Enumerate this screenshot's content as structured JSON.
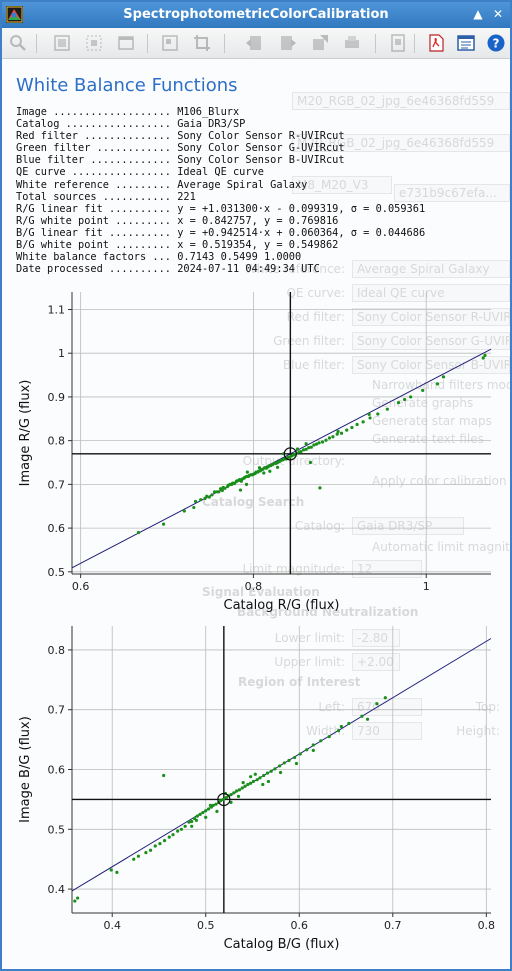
{
  "window": {
    "title": "SpectrophotometricColorCalibration"
  },
  "title_buttons": [
    "▲",
    "✕"
  ],
  "toolbar": {
    "icons": [
      "zoom-icon",
      "fit-zoom-icon",
      "selection-zoom-icon",
      "window-icon",
      "frame-icon",
      "crop-icon",
      "back-icon",
      "forward-icon",
      "export-icon",
      "print-icon",
      "document-icon",
      "pdf-icon",
      "contents-icon",
      "help-icon"
    ]
  },
  "page": {
    "heading": "White Balance Functions",
    "report": [
      {
        "label": "Image ...................",
        "value": "M106_Blurx"
      },
      {
        "label": "Catalog .................",
        "value": "Gaia DR3/SP"
      },
      {
        "label": "Red filter ..............",
        "value": "Sony Color Sensor R-UVIRcut"
      },
      {
        "label": "Green filter ............",
        "value": "Sony Color Sensor G-UVIRcut"
      },
      {
        "label": "Blue filter .............",
        "value": "Sony Color Sensor B-UVIRcut"
      },
      {
        "label": "QE curve ................",
        "value": "Ideal QE curve"
      },
      {
        "label": "White reference .........",
        "value": "Average Spiral Galaxy"
      },
      {
        "label": "Total sources ...........",
        "value": "221"
      },
      {
        "label": "R/G linear fit ..........",
        "value": "y = +1.031300·x - 0.099319, σ = 0.059361"
      },
      {
        "label": "R/G white point .........",
        "value": "x = 0.842757, y = 0.769816"
      },
      {
        "label": "B/G linear fit ..........",
        "value": "y = +0.942514·x + 0.060364, σ = 0.044686"
      },
      {
        "label": "B/G white point .........",
        "value": "x = 0.519354, y = 0.549862"
      },
      {
        "label": "White balance factors ...",
        "value": "0.7143 0.5499 1.0000"
      },
      {
        "label": "Date processed ..........",
        "value": "2024-07-11 04:49:34 UTC"
      }
    ]
  },
  "background_dialog": {
    "tabs": [
      "M20_RGB_02_jpg_6e46368fd559",
      "M20_RGB_02_jpg_6e46368fd559",
      "M8_M20_V3",
      "e731b9c67efa..."
    ],
    "rows": [
      {
        "label": "White reference:",
        "value": "Average Spiral Galaxy"
      },
      {
        "label": "QE curve:",
        "value": "Ideal QE curve"
      },
      {
        "label": "Red filter:",
        "value": "Sony Color Sensor R-UVIRc"
      },
      {
        "label": "Green filter:",
        "value": "Sony Color Sensor G-UVIR"
      },
      {
        "label": "Blue filter:",
        "value": "Sony Color Sensor B-UVIR"
      }
    ],
    "checks": [
      "Narrowband filters mode",
      "Generate graphs",
      "Generate star maps",
      "Generate text files"
    ],
    "output_dir_label": "Output directory:",
    "apply_label": "Apply color calibration",
    "catalog_search": "Catalog Search",
    "catalog_label": "Catalog:",
    "catalog_value": "Gaia DR3/SP",
    "auto_limit": "Automatic limit magnitude",
    "limit_mag": "Limit magnitude:",
    "limit_mag_value": "12",
    "signal_eval": "Signal Evaluation",
    "bg_neutral": "Background Neutralization",
    "lower_limit": "Lower limit:",
    "lower_value": "-2.80",
    "upper_limit": "Upper limit:",
    "upper_value": "+2.00",
    "roi": "Region of Interest",
    "left": "Left:",
    "left_value": "670",
    "top": "Top:",
    "width": "Width:",
    "width_value": "730",
    "height": "Height:"
  },
  "chart_data": [
    {
      "type": "scatter",
      "xlabel": "Catalog R/G (flux)",
      "ylabel": "Image R/G (flux)",
      "xlim": [
        0.59,
        1.075
      ],
      "ylim": [
        0.495,
        1.14
      ],
      "xticks": [
        0.6,
        0.8,
        1
      ],
      "yticks": [
        0.5,
        0.6,
        0.7,
        0.8,
        0.9,
        1,
        1.1
      ],
      "xtick_labels": [
        "0.6",
        "0.8",
        "1"
      ],
      "ytick_labels": [
        "0.5",
        "0.6",
        "0.7",
        "0.8",
        "0.9",
        "1",
        "1.1"
      ],
      "fit": {
        "slope": 1.0313,
        "intercept": -0.099319
      },
      "white_point": {
        "x": 0.842757,
        "y": 0.769816
      },
      "colors": {
        "points": "#1a8f1a",
        "fit": "#1f1f7a",
        "crosshair": "#111111",
        "grid": "#bbbbbb"
      },
      "points": [
        [
          0.667,
          0.59
        ],
        [
          0.696,
          0.609
        ],
        [
          0.72,
          0.639
        ],
        [
          0.731,
          0.647
        ],
        [
          0.733,
          0.661
        ],
        [
          0.739,
          0.665
        ],
        [
          0.744,
          0.668
        ],
        [
          0.746,
          0.673
        ],
        [
          0.749,
          0.671
        ],
        [
          0.752,
          0.676
        ],
        [
          0.755,
          0.683
        ],
        [
          0.758,
          0.683
        ],
        [
          0.76,
          0.683
        ],
        [
          0.762,
          0.69
        ],
        [
          0.764,
          0.686
        ],
        [
          0.765,
          0.693
        ],
        [
          0.767,
          0.691
        ],
        [
          0.77,
          0.695
        ],
        [
          0.771,
          0.698
        ],
        [
          0.773,
          0.7
        ],
        [
          0.775,
          0.7
        ],
        [
          0.776,
          0.703
        ],
        [
          0.778,
          0.702
        ],
        [
          0.78,
          0.706
        ],
        [
          0.781,
          0.708
        ],
        [
          0.783,
          0.709
        ],
        [
          0.784,
          0.711
        ],
        [
          0.786,
          0.707
        ],
        [
          0.787,
          0.712
        ],
        [
          0.789,
          0.714
        ],
        [
          0.79,
          0.716
        ],
        [
          0.792,
          0.718
        ],
        [
          0.794,
          0.718
        ],
        [
          0.795,
          0.72
        ],
        [
          0.797,
          0.722
        ],
        [
          0.799,
          0.722
        ],
        [
          0.8,
          0.723
        ],
        [
          0.802,
          0.725
        ],
        [
          0.803,
          0.728
        ],
        [
          0.805,
          0.728
        ],
        [
          0.806,
          0.73
        ],
        [
          0.808,
          0.731
        ],
        [
          0.81,
          0.734
        ],
        [
          0.811,
          0.735
        ],
        [
          0.813,
          0.738
        ],
        [
          0.815,
          0.737
        ],
        [
          0.817,
          0.74
        ],
        [
          0.818,
          0.742
        ],
        [
          0.82,
          0.743
        ],
        [
          0.822,
          0.745
        ],
        [
          0.824,
          0.748
        ],
        [
          0.826,
          0.748
        ],
        [
          0.828,
          0.75
        ],
        [
          0.83,
          0.752
        ],
        [
          0.832,
          0.755
        ],
        [
          0.834,
          0.756
        ],
        [
          0.836,
          0.758
        ],
        [
          0.838,
          0.758
        ],
        [
          0.84,
          0.762
        ],
        [
          0.842,
          0.762
        ],
        [
          0.844,
          0.765
        ],
        [
          0.846,
          0.767
        ],
        [
          0.848,
          0.768
        ],
        [
          0.85,
          0.771
        ],
        [
          0.853,
          0.774
        ],
        [
          0.855,
          0.775
        ],
        [
          0.858,
          0.779
        ],
        [
          0.861,
          0.78
        ],
        [
          0.864,
          0.784
        ],
        [
          0.867,
          0.785
        ],
        [
          0.87,
          0.79
        ],
        [
          0.873,
          0.792
        ],
        [
          0.876,
          0.795
        ],
        [
          0.88,
          0.797
        ],
        [
          0.884,
          0.801
        ],
        [
          0.888,
          0.806
        ],
        [
          0.892,
          0.809
        ],
        [
          0.897,
          0.815
        ],
        [
          0.902,
          0.817
        ],
        [
          0.908,
          0.824
        ],
        [
          0.914,
          0.83
        ],
        [
          0.92,
          0.837
        ],
        [
          0.927,
          0.843
        ],
        [
          0.935,
          0.852
        ],
        [
          0.944,
          0.861
        ],
        [
          0.955,
          0.872
        ],
        [
          0.968,
          0.887
        ],
        [
          0.982,
          0.9
        ],
        [
          0.996,
          0.915
        ],
        [
          1.013,
          0.93
        ],
        [
          1.02,
          0.946
        ],
        [
          1.066,
          0.989
        ],
        [
          1.068,
          0.995
        ],
        [
          0.785,
          0.687
        ],
        [
          0.792,
          0.7
        ],
        [
          0.812,
          0.726
        ],
        [
          0.819,
          0.73
        ],
        [
          0.828,
          0.739
        ],
        [
          0.861,
          0.793
        ],
        [
          0.866,
          0.75
        ],
        [
          0.877,
          0.692
        ],
        [
          0.793,
          0.728
        ],
        [
          0.807,
          0.738
        ],
        [
          0.835,
          0.77
        ],
        [
          0.851,
          0.781
        ],
        [
          0.898,
          0.821
        ],
        [
          0.934,
          0.86
        ],
        [
          0.975,
          0.894
        ]
      ]
    },
    {
      "type": "scatter",
      "xlabel": "Catalog B/G (flux)",
      "ylabel": "Image B/G (flux)",
      "xlim": [
        0.357,
        0.805
      ],
      "ylim": [
        0.36,
        0.84
      ],
      "xticks": [
        0.4,
        0.5,
        0.6,
        0.7,
        0.8
      ],
      "yticks": [
        0.4,
        0.5,
        0.6,
        0.7,
        0.8
      ],
      "xtick_labels": [
        "0.4",
        "0.5",
        "0.6",
        "0.7",
        "0.8"
      ],
      "ytick_labels": [
        "0.4",
        "0.5",
        "0.6",
        "0.7",
        "0.8"
      ],
      "fit": {
        "slope": 0.942514,
        "intercept": 0.060364
      },
      "white_point": {
        "x": 0.519354,
        "y": 0.549862
      },
      "colors": {
        "points": "#1a8f1a",
        "fit": "#1f1f7a",
        "crosshair": "#111111",
        "grid": "#bbbbbb"
      },
      "points": [
        [
          0.36,
          0.38
        ],
        [
          0.363,
          0.385
        ],
        [
          0.399,
          0.432
        ],
        [
          0.405,
          0.428
        ],
        [
          0.423,
          0.45
        ],
        [
          0.428,
          0.455
        ],
        [
          0.436,
          0.461
        ],
        [
          0.441,
          0.465
        ],
        [
          0.446,
          0.472
        ],
        [
          0.451,
          0.476
        ],
        [
          0.456,
          0.481
        ],
        [
          0.461,
          0.487
        ],
        [
          0.465,
          0.491
        ],
        [
          0.47,
          0.497
        ],
        [
          0.474,
          0.5
        ],
        [
          0.478,
          0.505
        ],
        [
          0.482,
          0.512
        ],
        [
          0.485,
          0.513
        ],
        [
          0.488,
          0.518
        ],
        [
          0.491,
          0.522
        ],
        [
          0.494,
          0.525
        ],
        [
          0.497,
          0.528
        ],
        [
          0.5,
          0.531
        ],
        [
          0.503,
          0.534
        ],
        [
          0.506,
          0.537
        ],
        [
          0.508,
          0.54
        ],
        [
          0.511,
          0.542
        ],
        [
          0.514,
          0.545
        ],
        [
          0.516,
          0.548
        ],
        [
          0.519,
          0.55
        ],
        [
          0.522,
          0.553
        ],
        [
          0.524,
          0.556
        ],
        [
          0.527,
          0.558
        ],
        [
          0.53,
          0.561
        ],
        [
          0.533,
          0.564
        ],
        [
          0.536,
          0.566
        ],
        [
          0.539,
          0.569
        ],
        [
          0.542,
          0.572
        ],
        [
          0.545,
          0.575
        ],
        [
          0.548,
          0.577
        ],
        [
          0.551,
          0.58
        ],
        [
          0.555,
          0.583
        ],
        [
          0.558,
          0.586
        ],
        [
          0.562,
          0.59
        ],
        [
          0.566,
          0.594
        ],
        [
          0.57,
          0.597
        ],
        [
          0.574,
          0.601
        ],
        [
          0.579,
          0.606
        ],
        [
          0.584,
          0.611
        ],
        [
          0.589,
          0.615
        ],
        [
          0.595,
          0.62
        ],
        [
          0.601,
          0.626
        ],
        [
          0.608,
          0.633
        ],
        [
          0.615,
          0.641
        ],
        [
          0.623,
          0.648
        ],
        [
          0.632,
          0.655
        ],
        [
          0.642,
          0.665
        ],
        [
          0.653,
          0.677
        ],
        [
          0.667,
          0.689
        ],
        [
          0.683,
          0.71
        ],
        [
          0.692,
          0.72
        ],
        [
          0.485,
          0.505
        ],
        [
          0.5,
          0.52
        ],
        [
          0.512,
          0.53
        ],
        [
          0.527,
          0.545
        ],
        [
          0.54,
          0.578
        ],
        [
          0.553,
          0.592
        ],
        [
          0.567,
          0.58
        ],
        [
          0.58,
          0.595
        ],
        [
          0.597,
          0.61
        ],
        [
          0.615,
          0.632
        ],
        [
          0.645,
          0.672
        ],
        [
          0.673,
          0.684
        ],
        [
          0.455,
          0.59
        ],
        [
          0.49,
          0.515
        ],
        [
          0.505,
          0.54
        ],
        [
          0.521,
          0.56
        ],
        [
          0.535,
          0.555
        ],
        [
          0.548,
          0.588
        ],
        [
          0.561,
          0.575
        ]
      ]
    }
  ]
}
